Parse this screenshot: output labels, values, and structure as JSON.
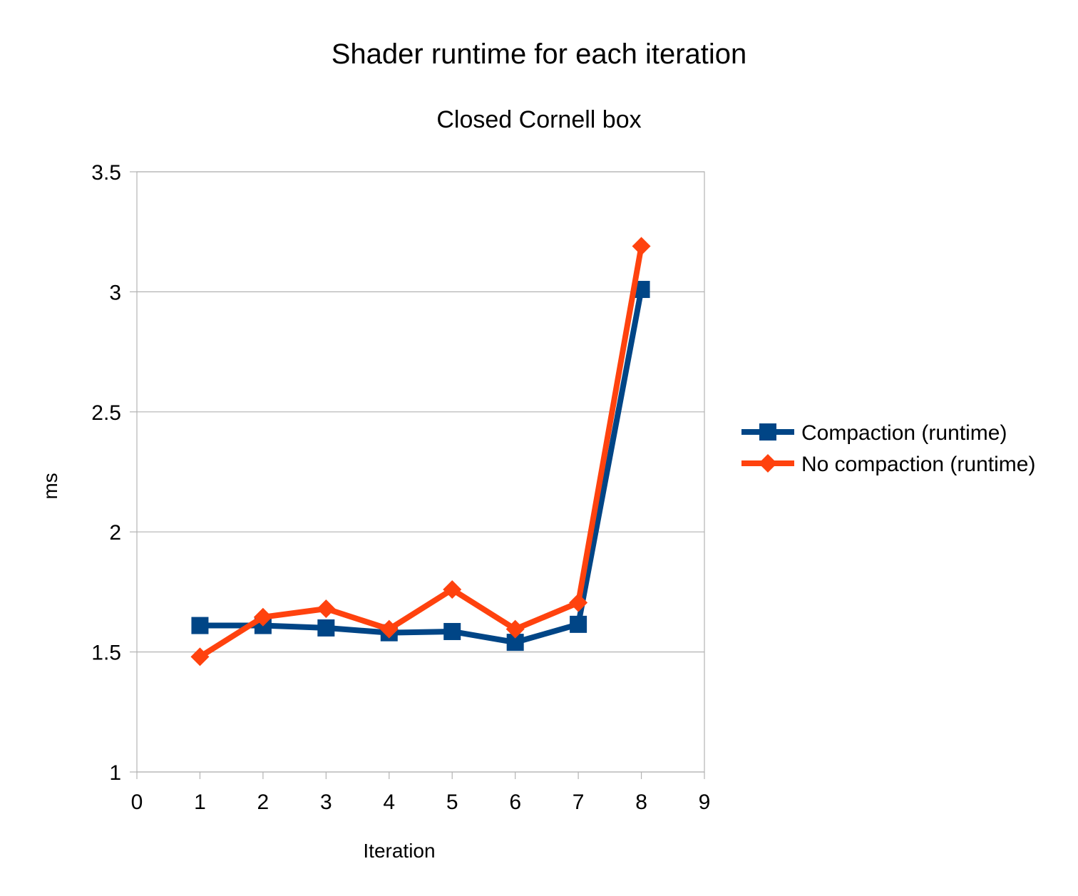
{
  "chart_data": {
    "type": "line",
    "title": "Shader runtime for each iteration",
    "subtitle": "Closed Cornell box",
    "xlabel": "Iteration",
    "ylabel": "ms",
    "xlim": [
      0,
      9
    ],
    "ylim": [
      1,
      3.5
    ],
    "xticks": [
      "0",
      "1",
      "2",
      "3",
      "4",
      "5",
      "6",
      "7",
      "8",
      "9"
    ],
    "yticks": [
      "1",
      "1.5",
      "2",
      "2.5",
      "3",
      "3.5"
    ],
    "grid": "horizontal",
    "legend_position": "right",
    "series": [
      {
        "name": "Compaction (runtime)",
        "color": "#004586",
        "marker": "square",
        "x": [
          1,
          2,
          3,
          4,
          5,
          6,
          7,
          8
        ],
        "values": [
          1.61,
          1.61,
          1.6,
          1.58,
          1.585,
          1.54,
          1.615,
          3.01
        ]
      },
      {
        "name": "No compaction (runtime)",
        "color": "#ff420e",
        "marker": "diamond",
        "x": [
          1,
          2,
          3,
          4,
          5,
          6,
          7,
          8
        ],
        "values": [
          1.48,
          1.645,
          1.68,
          1.595,
          1.76,
          1.595,
          1.705,
          3.19
        ]
      }
    ]
  }
}
